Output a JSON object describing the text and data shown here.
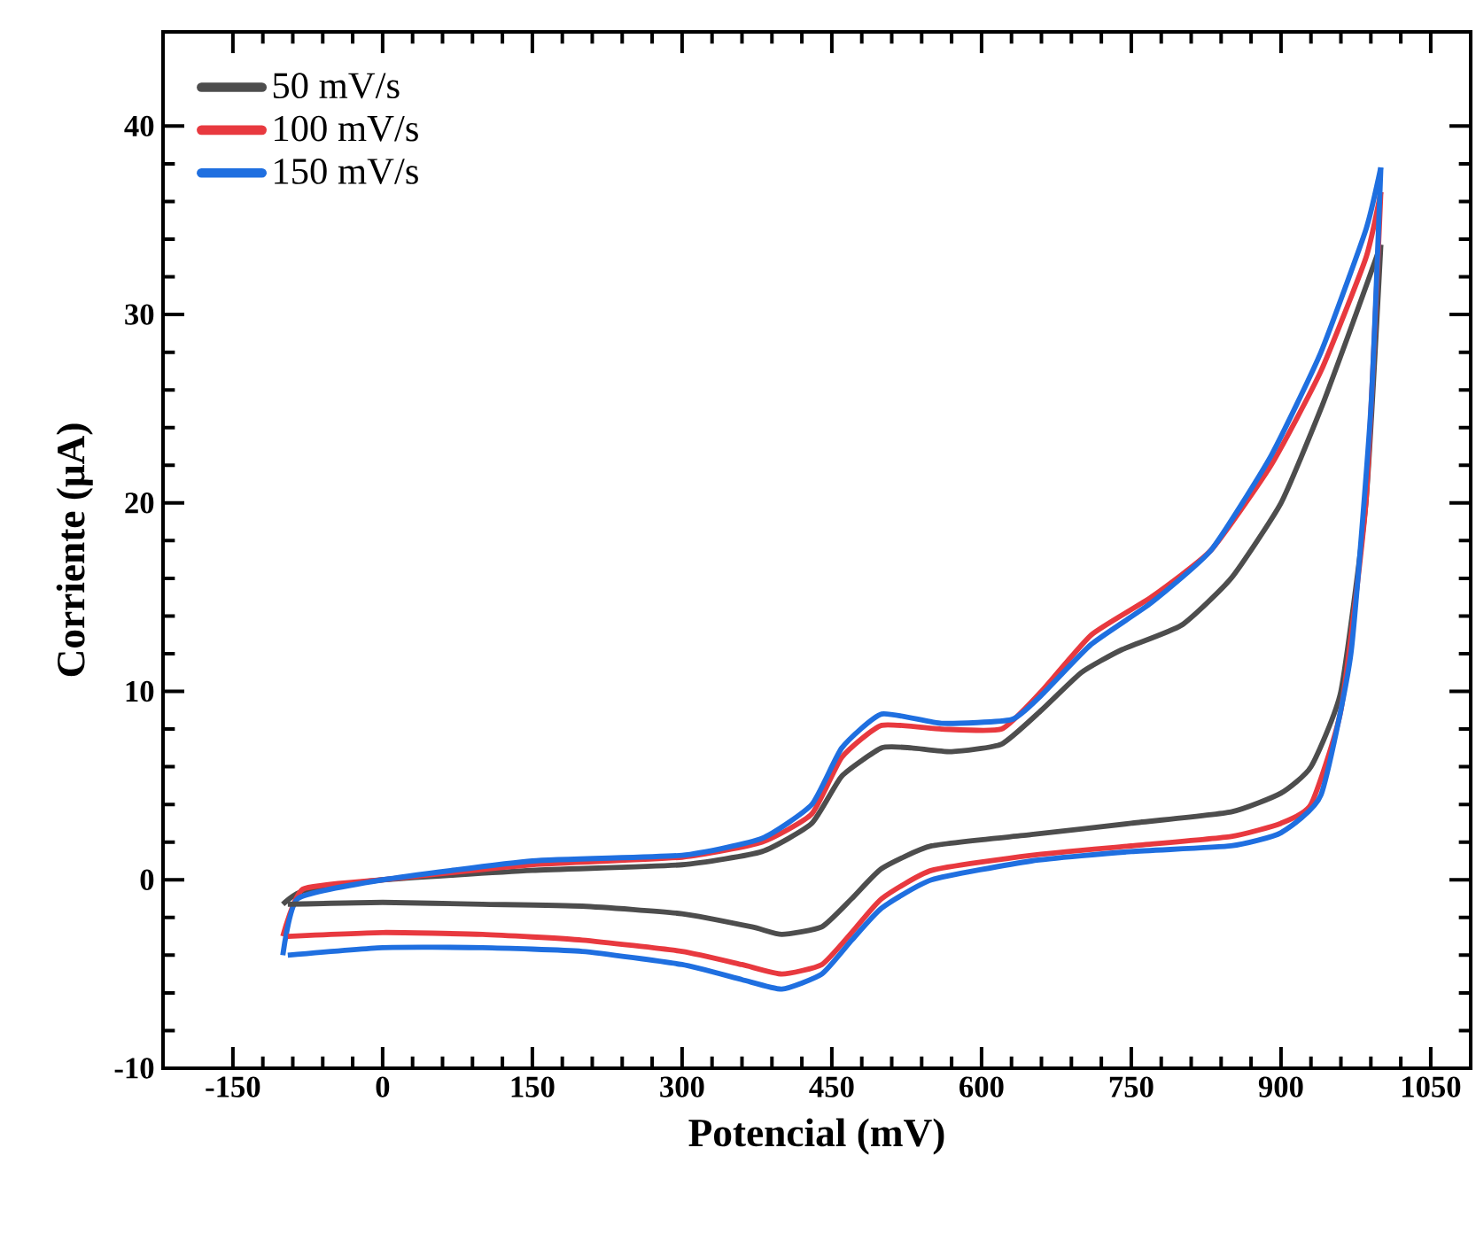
{
  "chart_data": {
    "type": "line",
    "xlabel": "Potencial (mV)",
    "ylabel": "Corriente (μA)",
    "xlim": [
      -220,
      1090
    ],
    "ylim": [
      -10,
      45
    ],
    "xticks": [
      -150,
      0,
      150,
      300,
      450,
      600,
      750,
      900,
      1050
    ],
    "yticks": [
      -10,
      0,
      10,
      20,
      30,
      40
    ],
    "legend": "top left",
    "grid": false,
    "marker": "none",
    "line_style": "solid",
    "series": [
      {
        "name": "50 mV/s",
        "color": "#4d4d4d",
        "x": [
          -100,
          -80,
          0,
          150,
          300,
          380,
          430,
          460,
          500,
          530,
          570,
          620,
          660,
          700,
          740,
          800,
          850,
          900,
          940,
          975,
          1000
        ],
        "values": [
          -1.3,
          -0.6,
          0,
          0.5,
          0.8,
          1.5,
          3,
          5.5,
          7,
          7,
          6.8,
          7.2,
          9,
          11,
          12.2,
          13.5,
          16,
          20,
          25,
          30,
          33.7
        ]
      },
      {
        "name": "100 mV/s",
        "color": "#e8393f",
        "x": [
          -100,
          -80,
          0,
          150,
          300,
          380,
          430,
          460,
          500,
          560,
          620,
          660,
          710,
          770,
          830,
          890,
          940,
          985,
          1000
        ],
        "values": [
          -3,
          -0.5,
          0,
          0.8,
          1.2,
          2,
          3.5,
          6.5,
          8.2,
          8,
          8,
          10,
          13,
          15,
          17.5,
          22,
          27,
          33,
          36.5
        ]
      },
      {
        "name": "150 mV/s",
        "color": "#1f6fe0",
        "x": [
          -100,
          -85,
          0,
          150,
          300,
          380,
          430,
          460,
          500,
          560,
          630,
          660,
          710,
          770,
          830,
          890,
          940,
          985,
          1000
        ],
        "values": [
          -4,
          -1,
          0,
          1,
          1.3,
          2.2,
          4,
          7,
          8.8,
          8.3,
          8.5,
          9.8,
          12.5,
          14.7,
          17.5,
          22.5,
          28,
          34.5,
          37.8
        ]
      },
      {
        "color": "#4d4d4d",
        "x": [
          -95,
          0,
          100,
          200,
          300,
          370,
          400,
          440,
          470,
          500,
          550,
          650,
          750,
          850,
          900,
          930,
          960,
          985,
          1000
        ],
        "values": [
          -1.3,
          -1.2,
          -1.3,
          -1.4,
          -1.8,
          -2.5,
          -2.9,
          -2.5,
          -1,
          0.6,
          1.8,
          2.4,
          3,
          3.6,
          4.6,
          6,
          10,
          20,
          33.7
        ]
      },
      {
        "color": "#e8393f",
        "x": [
          -95,
          0,
          100,
          200,
          300,
          360,
          400,
          440,
          470,
          500,
          550,
          650,
          750,
          850,
          900,
          930,
          960,
          985,
          1000
        ],
        "values": [
          -3,
          -2.8,
          -2.9,
          -3.2,
          -3.8,
          -4.5,
          -5,
          -4.5,
          -2.8,
          -1,
          0.5,
          1.3,
          1.8,
          2.3,
          3,
          4,
          9,
          20,
          36.5
        ]
      },
      {
        "color": "#1f6fe0",
        "x": [
          -95,
          0,
          100,
          200,
          300,
          360,
          400,
          440,
          470,
          500,
          550,
          650,
          750,
          850,
          900,
          940,
          970,
          990,
          1000
        ],
        "values": [
          -4,
          -3.6,
          -3.6,
          -3.8,
          -4.5,
          -5.3,
          -5.8,
          -5,
          -3.2,
          -1.5,
          0,
          1,
          1.5,
          1.8,
          2.5,
          4.5,
          12,
          25,
          37.8
        ]
      }
    ]
  }
}
